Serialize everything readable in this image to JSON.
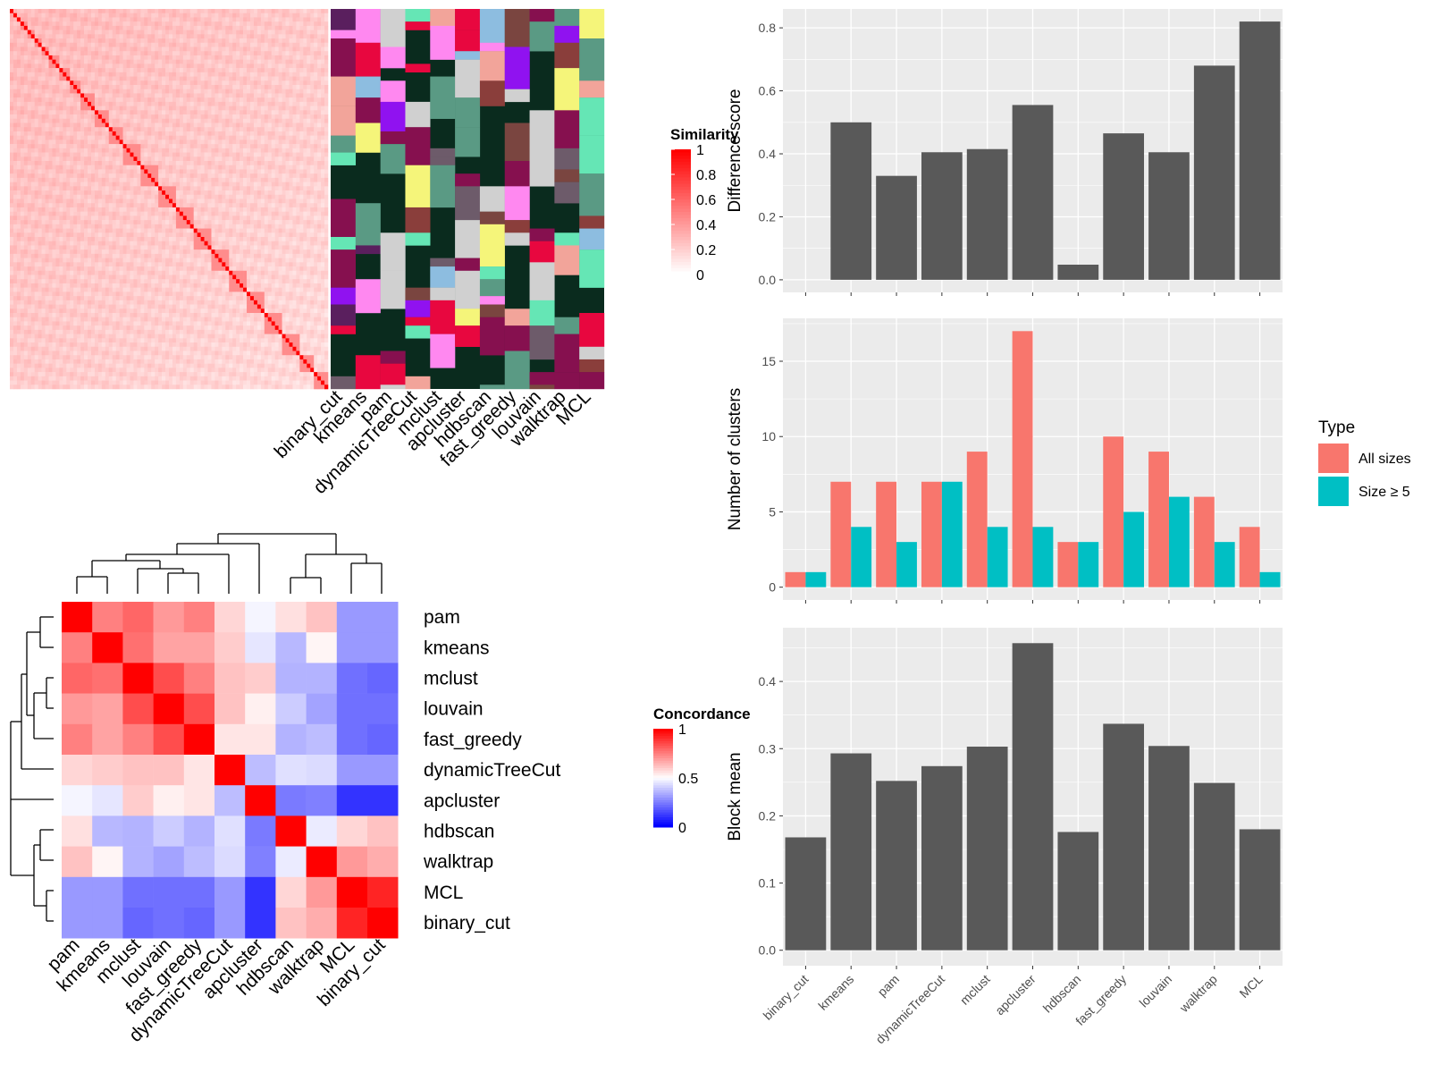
{
  "colors": {
    "panel_bg": "#ebebeb",
    "grid": "#ffffff",
    "bar_grey": "#595959",
    "all_sizes": "#f8766d",
    "size5": "#00bfc4",
    "annot_bg": "#0a2b1e"
  },
  "methods": [
    "binary_cut",
    "kmeans",
    "pam",
    "dynamicTreeCut",
    "mclust",
    "apcluster",
    "hdbscan",
    "fast_greedy",
    "louvain",
    "walktrap",
    "MCL"
  ],
  "chart_data": [
    {
      "type": "heatmap",
      "title": "",
      "legend_title": "Similarity",
      "legend_ticks": [
        "1",
        "0.8",
        "0.6",
        "0.4",
        "0.2",
        "0"
      ],
      "annotation_columns": [
        "binary_cut",
        "kmeans",
        "pam",
        "dynamicTreeCut",
        "mclust",
        "apcluster",
        "hdbscan",
        "fast_greedy",
        "louvain",
        "walktrap",
        "MCL"
      ]
    },
    {
      "type": "heatmap",
      "legend_title": "Concordance",
      "legend_ticks": [
        "1",
        "0.5",
        "0"
      ],
      "rows": [
        "pam",
        "kmeans",
        "mclust",
        "louvain",
        "fast_greedy",
        "dynamicTreeCut",
        "apcluster",
        "hdbscan",
        "walktrap",
        "MCL",
        "binary_cut"
      ],
      "cols": [
        "pam",
        "kmeans",
        "mclust",
        "louvain",
        "fast_greedy",
        "dynamicTreeCut",
        "apcluster",
        "hdbscan",
        "walktrap",
        "MCL",
        "binary_cut"
      ],
      "values": [
        [
          1.0,
          0.75,
          0.8,
          0.7,
          0.75,
          0.58,
          0.48,
          0.56,
          0.62,
          0.3,
          0.3
        ],
        [
          0.75,
          1.0,
          0.78,
          0.68,
          0.68,
          0.6,
          0.45,
          0.36,
          0.52,
          0.3,
          0.3
        ],
        [
          0.8,
          0.78,
          1.0,
          0.85,
          0.75,
          0.62,
          0.6,
          0.35,
          0.35,
          0.22,
          0.2
        ],
        [
          0.7,
          0.68,
          0.85,
          1.0,
          0.85,
          0.62,
          0.53,
          0.4,
          0.32,
          0.22,
          0.22
        ],
        [
          0.75,
          0.68,
          0.75,
          0.85,
          1.0,
          0.55,
          0.55,
          0.35,
          0.37,
          0.22,
          0.2
        ],
        [
          0.58,
          0.6,
          0.62,
          0.62,
          0.55,
          1.0,
          0.37,
          0.44,
          0.43,
          0.3,
          0.3
        ],
        [
          0.48,
          0.45,
          0.6,
          0.53,
          0.55,
          0.37,
          1.0,
          0.24,
          0.25,
          0.1,
          0.1
        ],
        [
          0.56,
          0.36,
          0.35,
          0.4,
          0.35,
          0.44,
          0.24,
          1.0,
          0.46,
          0.58,
          0.62
        ],
        [
          0.62,
          0.52,
          0.35,
          0.32,
          0.37,
          0.43,
          0.25,
          0.46,
          1.0,
          0.7,
          0.66
        ],
        [
          0.3,
          0.3,
          0.22,
          0.22,
          0.22,
          0.3,
          0.1,
          0.58,
          0.7,
          1.0,
          0.93
        ],
        [
          0.3,
          0.3,
          0.2,
          0.22,
          0.2,
          0.3,
          0.1,
          0.62,
          0.66,
          0.93,
          1.0
        ]
      ]
    },
    {
      "type": "bar",
      "categories": [
        "binary_cut",
        "kmeans",
        "pam",
        "dynamicTreeCut",
        "mclust",
        "apcluster",
        "hdbscan",
        "fast_greedy",
        "louvain",
        "walktrap",
        "MCL"
      ],
      "values": [
        0.0,
        0.5,
        0.33,
        0.405,
        0.415,
        0.555,
        0.048,
        0.465,
        0.405,
        0.68,
        0.82
      ],
      "ylabel": "Difference score",
      "ylim": [
        -0.04,
        0.86
      ],
      "yticks": [
        "0.0",
        "0.2",
        "0.4",
        "0.6",
        "0.8"
      ],
      "grid": true
    },
    {
      "type": "bar",
      "categories": [
        "binary_cut",
        "kmeans",
        "pam",
        "dynamicTreeCut",
        "mclust",
        "apcluster",
        "hdbscan",
        "fast_greedy",
        "louvain",
        "walktrap",
        "MCL"
      ],
      "series": [
        {
          "name": "All sizes",
          "values": [
            1,
            7,
            7,
            7,
            9,
            17,
            3,
            10,
            9,
            6,
            4
          ]
        },
        {
          "name": "Size ≥ 5",
          "values": [
            1,
            4,
            3,
            7,
            4,
            4,
            3,
            5,
            6,
            3,
            1
          ]
        }
      ],
      "ylabel": "Number of clusters",
      "ylim": [
        -0.85,
        17.85
      ],
      "yticks": [
        "0",
        "5",
        "10",
        "15"
      ],
      "legend_title": "Type",
      "legend_position": "right",
      "grid": true
    },
    {
      "type": "bar",
      "categories": [
        "binary_cut",
        "kmeans",
        "pam",
        "dynamicTreeCut",
        "mclust",
        "apcluster",
        "hdbscan",
        "fast_greedy",
        "louvain",
        "walktrap",
        "MCL"
      ],
      "values": [
        0.168,
        0.293,
        0.252,
        0.274,
        0.303,
        0.457,
        0.176,
        0.337,
        0.304,
        0.249,
        0.18
      ],
      "ylabel": "Block mean",
      "ylim": [
        -0.023,
        0.48
      ],
      "yticks": [
        "0.0",
        "0.1",
        "0.2",
        "0.3",
        "0.4"
      ],
      "grid": true
    }
  ]
}
